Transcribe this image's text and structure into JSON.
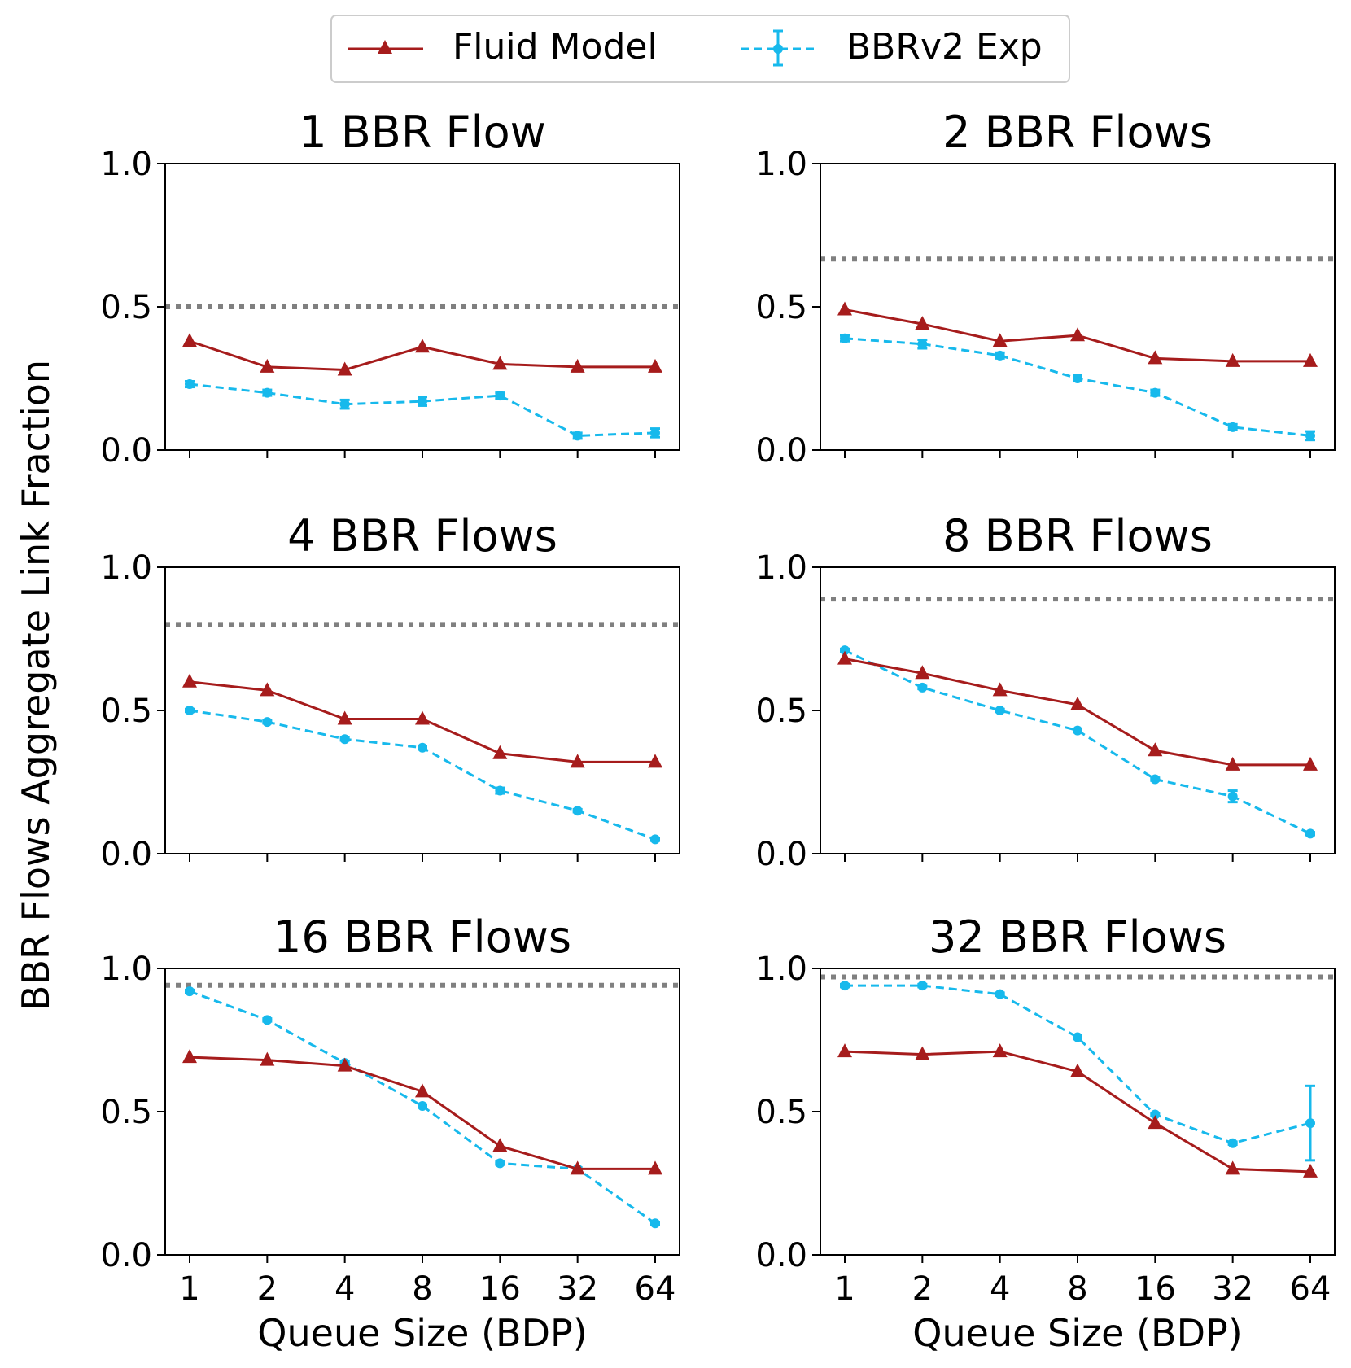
{
  "legend": {
    "fluid_label": "Fluid Model",
    "exp_label": "BBRv2 Exp",
    "placement": "top-center"
  },
  "shared": {
    "ylabel": "BBR Flows Aggregate Link Fraction",
    "xlabel": "Queue Size (BDP)",
    "xtick_labels": [
      "1",
      "2",
      "4",
      "8",
      "16",
      "32",
      "64"
    ],
    "ytick_labels": [
      "0.0",
      "0.5",
      "1.0"
    ]
  },
  "colors": {
    "fluid": "#a61c1c",
    "exp": "#17b9ec",
    "reference": "#808080",
    "axis": "#000000"
  },
  "chart_data": [
    {
      "type": "line",
      "title": "1 BBR Flow",
      "categories": [
        "1",
        "2",
        "4",
        "8",
        "16",
        "32",
        "64"
      ],
      "ylim": [
        0,
        1
      ],
      "reference_line": 0.5,
      "series": [
        {
          "name": "Fluid Model",
          "values": [
            0.38,
            0.29,
            0.28,
            0.36,
            0.3,
            0.29,
            0.29
          ]
        },
        {
          "name": "BBRv2 Exp",
          "values": [
            0.23,
            0.2,
            0.16,
            0.17,
            0.19,
            0.05,
            0.06
          ],
          "errors": [
            0.01,
            0.01,
            0.015,
            0.015,
            0.01,
            0.01,
            0.015
          ]
        }
      ]
    },
    {
      "type": "line",
      "title": "2 BBR Flows",
      "categories": [
        "1",
        "2",
        "4",
        "8",
        "16",
        "32",
        "64"
      ],
      "ylim": [
        0,
        1
      ],
      "reference_line": 0.667,
      "series": [
        {
          "name": "Fluid Model",
          "values": [
            0.49,
            0.44,
            0.38,
            0.4,
            0.32,
            0.31,
            0.31
          ]
        },
        {
          "name": "BBRv2 Exp",
          "values": [
            0.39,
            0.37,
            0.33,
            0.25,
            0.2,
            0.08,
            0.05
          ],
          "errors": [
            0.01,
            0.015,
            0.01,
            0.01,
            0.01,
            0.01,
            0.015
          ]
        }
      ]
    },
    {
      "type": "line",
      "title": "4 BBR Flows",
      "categories": [
        "1",
        "2",
        "4",
        "8",
        "16",
        "32",
        "64"
      ],
      "ylim": [
        0,
        1
      ],
      "reference_line": 0.8,
      "series": [
        {
          "name": "Fluid Model",
          "values": [
            0.6,
            0.57,
            0.47,
            0.47,
            0.35,
            0.32,
            0.32
          ]
        },
        {
          "name": "BBRv2 Exp",
          "values": [
            0.5,
            0.46,
            0.4,
            0.37,
            0.22,
            0.15,
            0.05
          ],
          "errors": [
            0.005,
            0.005,
            0.005,
            0.005,
            0.01,
            0.005,
            0.005
          ]
        }
      ]
    },
    {
      "type": "line",
      "title": "8 BBR Flows",
      "categories": [
        "1",
        "2",
        "4",
        "8",
        "16",
        "32",
        "64"
      ],
      "ylim": [
        0,
        1
      ],
      "reference_line": 0.889,
      "series": [
        {
          "name": "Fluid Model",
          "values": [
            0.68,
            0.63,
            0.57,
            0.52,
            0.36,
            0.31,
            0.31
          ]
        },
        {
          "name": "BBRv2 Exp",
          "values": [
            0.71,
            0.58,
            0.5,
            0.43,
            0.26,
            0.2,
            0.07
          ],
          "errors": [
            0.005,
            0.005,
            0.005,
            0.005,
            0.005,
            0.02,
            0.005
          ]
        }
      ]
    },
    {
      "type": "line",
      "title": "16 BBR Flows",
      "categories": [
        "1",
        "2",
        "4",
        "8",
        "16",
        "32",
        "64"
      ],
      "ylim": [
        0,
        1
      ],
      "reference_line": 0.941,
      "series": [
        {
          "name": "Fluid Model",
          "values": [
            0.69,
            0.68,
            0.66,
            0.57,
            0.38,
            0.3,
            0.3
          ]
        },
        {
          "name": "BBRv2 Exp",
          "values": [
            0.92,
            0.82,
            0.67,
            0.52,
            0.32,
            0.3,
            0.11
          ],
          "errors": [
            0.005,
            0.005,
            0.005,
            0.005,
            0.005,
            0.005,
            0.005
          ]
        }
      ]
    },
    {
      "type": "line",
      "title": "32 BBR Flows",
      "categories": [
        "1",
        "2",
        "4",
        "8",
        "16",
        "32",
        "64"
      ],
      "ylim": [
        0,
        1
      ],
      "reference_line": 0.97,
      "series": [
        {
          "name": "Fluid Model",
          "values": [
            0.71,
            0.7,
            0.71,
            0.64,
            0.46,
            0.3,
            0.29
          ]
        },
        {
          "name": "BBRv2 Exp",
          "values": [
            0.94,
            0.94,
            0.91,
            0.76,
            0.49,
            0.39,
            0.46
          ],
          "errors": [
            0.005,
            0.005,
            0.005,
            0.005,
            0.005,
            0.005,
            0.13
          ]
        }
      ]
    }
  ]
}
